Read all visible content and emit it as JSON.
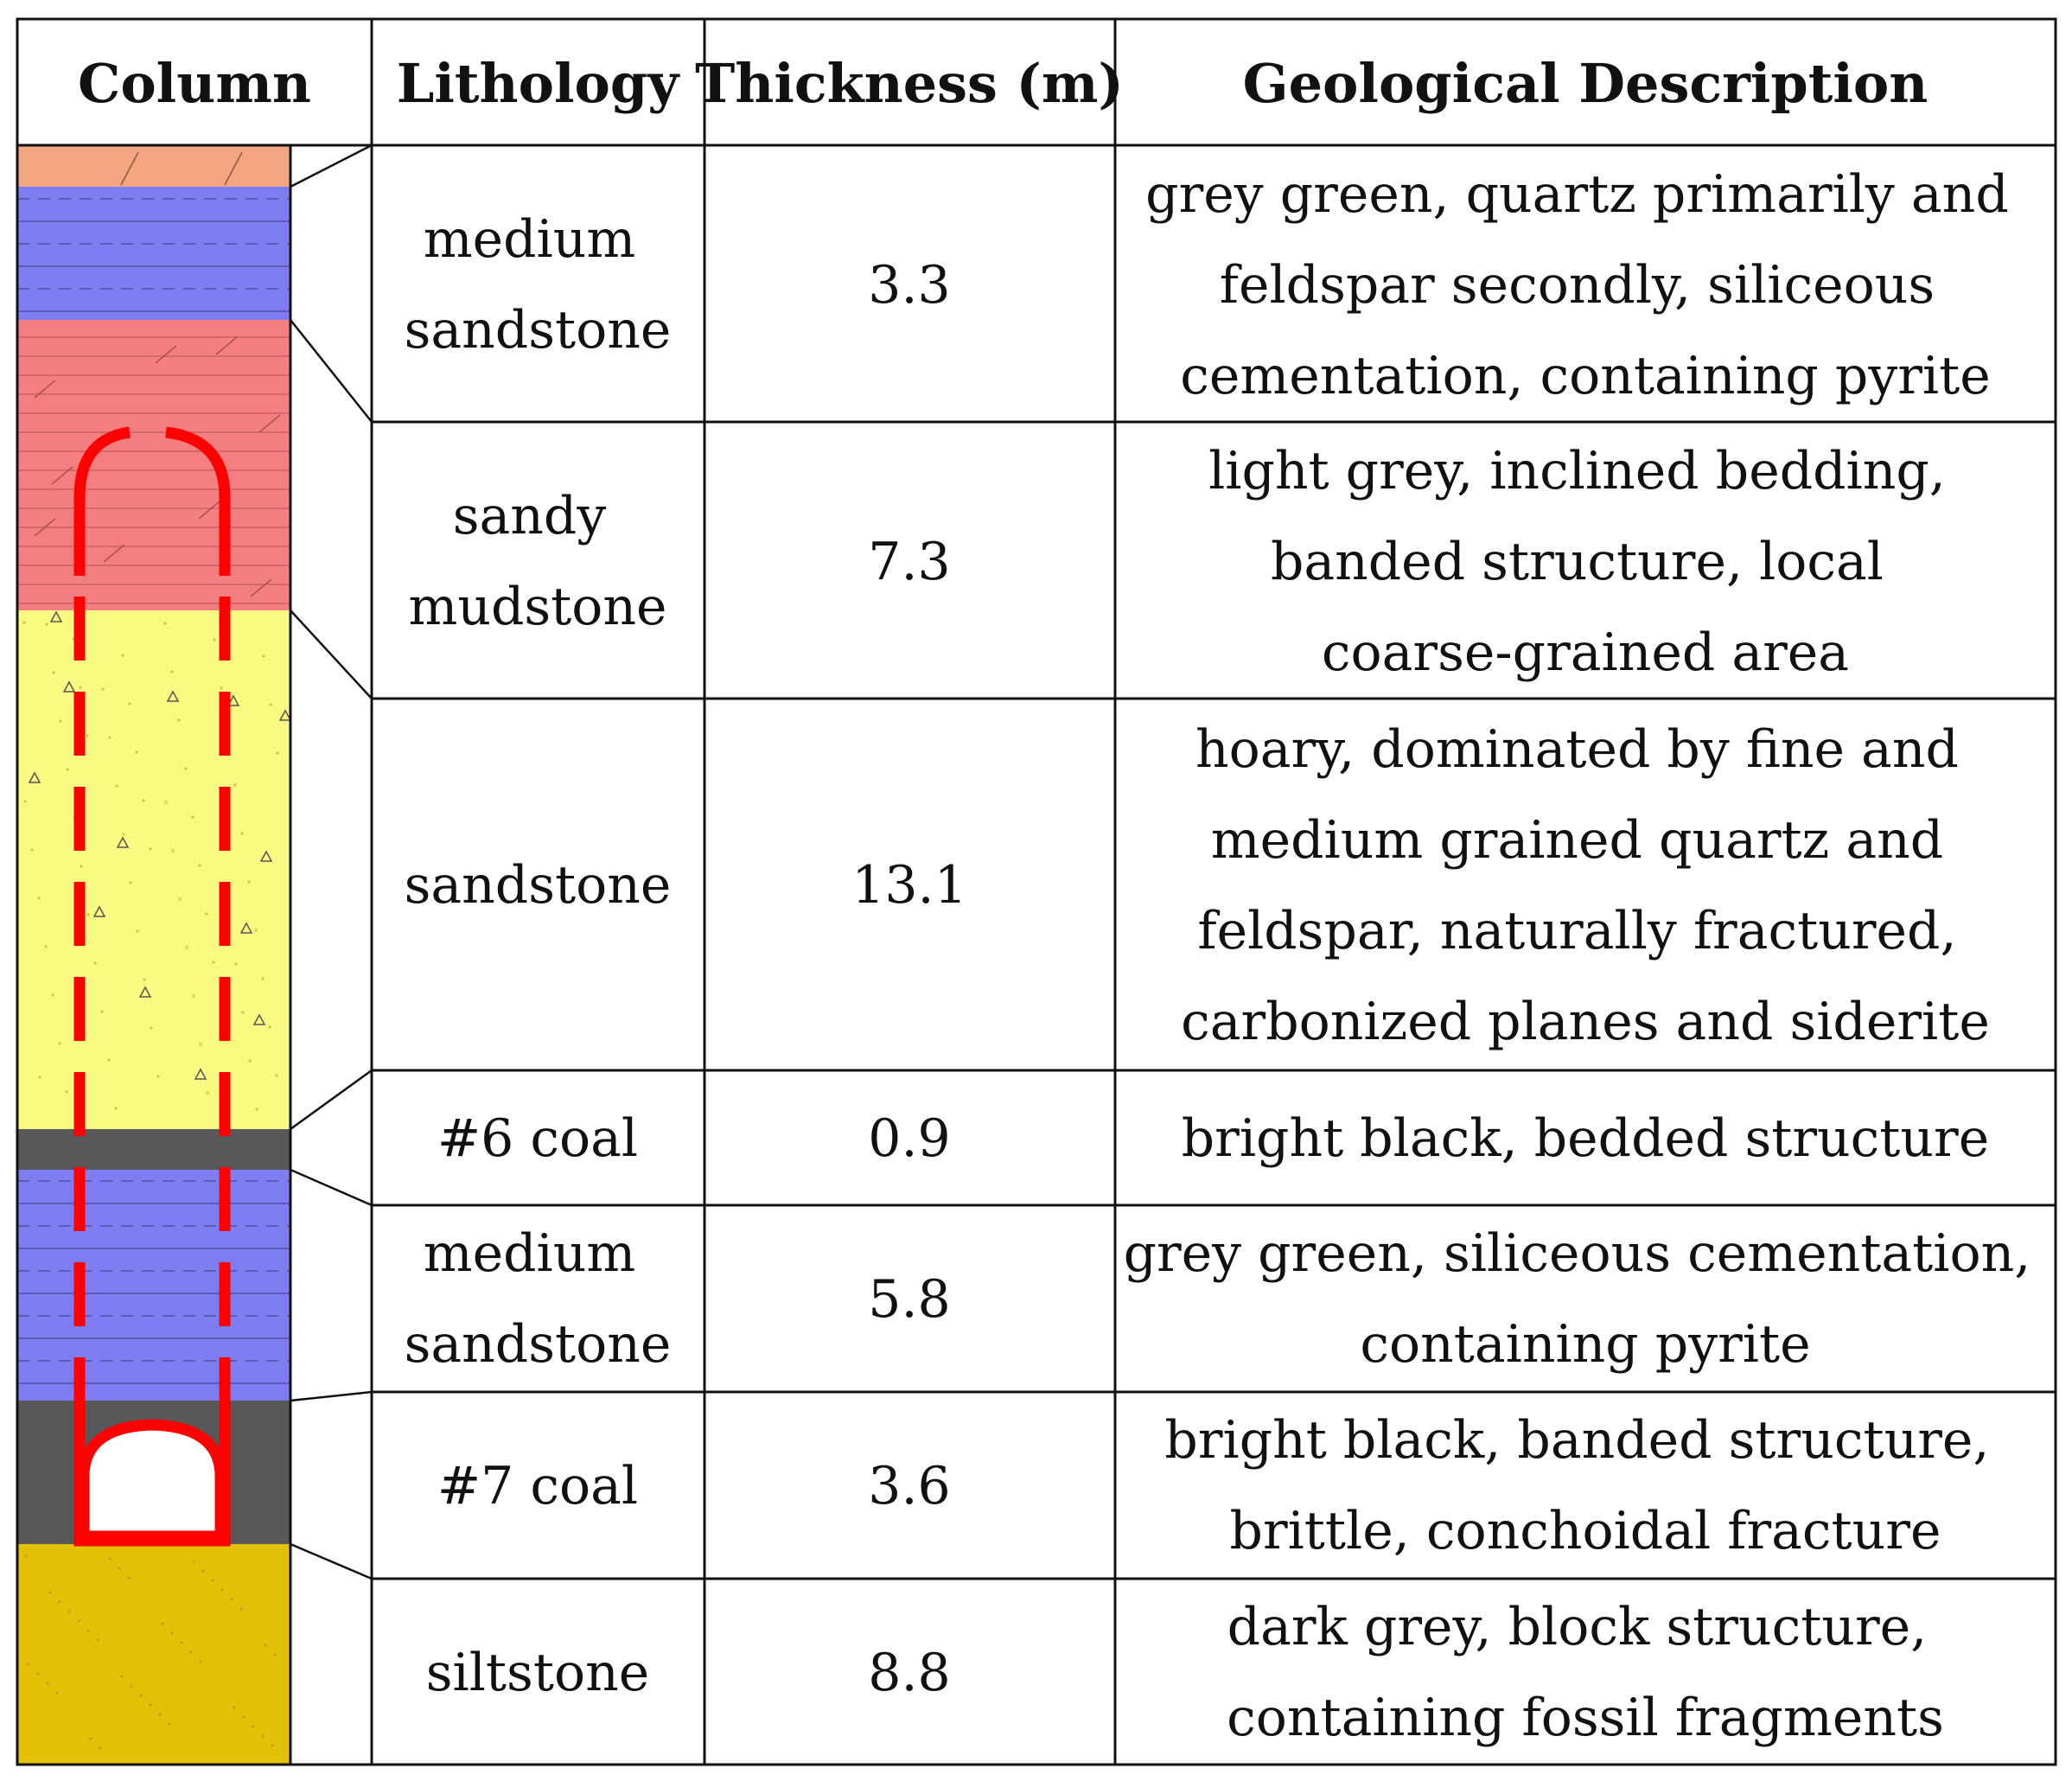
{
  "table": {
    "headers": {
      "column": "Column",
      "lithology": "Lithology",
      "thickness": "Thickness (m)",
      "description": "Geological Description"
    },
    "rows": [
      {
        "lithology": [
          "medium",
          "sandstone"
        ],
        "thickness": "3.3",
        "description": [
          "grey green, quartz primarily and",
          "feldspar secondly, siliceous",
          "cementation, containing pyrite"
        ]
      },
      {
        "lithology": [
          "sandy",
          "mudstone"
        ],
        "thickness": "7.3",
        "description": [
          "light grey, inclined bedding,",
          "banded structure, local",
          "coarse-grained area"
        ]
      },
      {
        "lithology": [
          "sandstone"
        ],
        "thickness": "13.1",
        "description": [
          "hoary, dominated by fine and",
          "medium grained quartz and",
          "feldspar, naturally fractured,",
          "carbonized planes and siderite"
        ]
      },
      {
        "lithology": [
          "#6 coal"
        ],
        "thickness": "0.9",
        "description": [
          "bright black, bedded structure"
        ]
      },
      {
        "lithology": [
          "medium",
          "sandstone"
        ],
        "thickness": "5.8",
        "description": [
          "grey green, siliceous cementation,",
          "containing pyrite"
        ]
      },
      {
        "lithology": [
          "#7 coal"
        ],
        "thickness": "3.6",
        "description": [
          "bright black, banded structure,",
          "brittle, conchoidal fracture"
        ]
      },
      {
        "lithology": [
          "siltstone"
        ],
        "thickness": "8.8",
        "description": [
          "dark grey, block structure,",
          "containing fossil fragments"
        ]
      }
    ]
  },
  "column": {
    "layers": [
      {
        "name": "top-layer",
        "color": "#F4A582",
        "pattern": "diagonal"
      },
      {
        "name": "medium-sandstone-upper",
        "color": "#7E7EF2",
        "pattern": "dashed-horizontal"
      },
      {
        "name": "sandy-mudstone",
        "color": "#F47F80",
        "pattern": "horizontal-diagonal"
      },
      {
        "name": "sandstone",
        "color": "#FAFA82",
        "pattern": "triangles-dots"
      },
      {
        "name": "coal-6",
        "color": "#585858",
        "pattern": "solid"
      },
      {
        "name": "medium-sandstone-lower",
        "color": "#7E7EF2",
        "pattern": "dashed-horizontal"
      },
      {
        "name": "coal-7",
        "color": "#585858",
        "pattern": "solid"
      },
      {
        "name": "siltstone",
        "color": "#E2C108",
        "pattern": "dots"
      }
    ],
    "roadway_color": "#FF0000"
  },
  "colors": {
    "grid": "#111111",
    "text": "#111111",
    "background": "#FFFFFF"
  }
}
